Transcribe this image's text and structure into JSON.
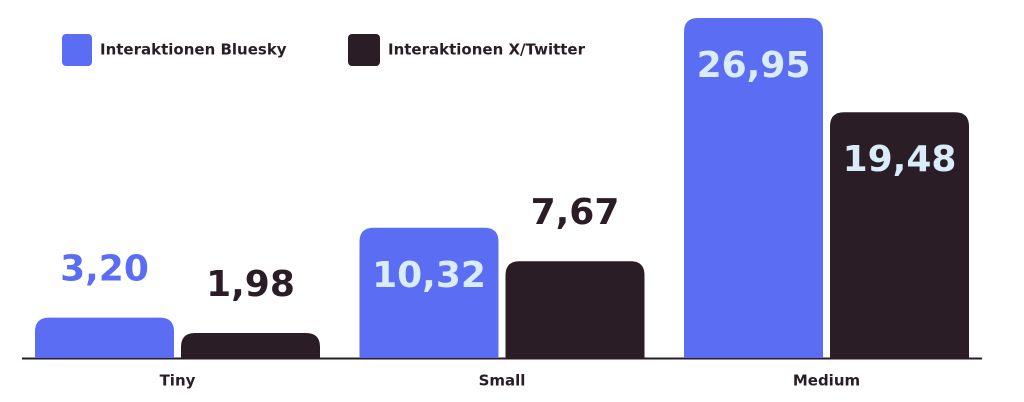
{
  "chart_data": {
    "type": "bar",
    "categories": [
      "Tiny",
      "Small",
      "Medium"
    ],
    "series": [
      {
        "name": "Interaktionen Bluesky",
        "color": "#5b6df2",
        "values": [
          3.2,
          10.32,
          26.95
        ],
        "value_labels": [
          "3,20",
          "10,32",
          "26,95"
        ]
      },
      {
        "name": "Interaktionen X/Twitter",
        "color": "#2a1d26",
        "values": [
          1.98,
          7.67,
          19.48
        ],
        "value_labels": [
          "1,98",
          "7,67",
          "19,48"
        ]
      }
    ],
    "inside_label_color": "#d8ecfa"
  }
}
